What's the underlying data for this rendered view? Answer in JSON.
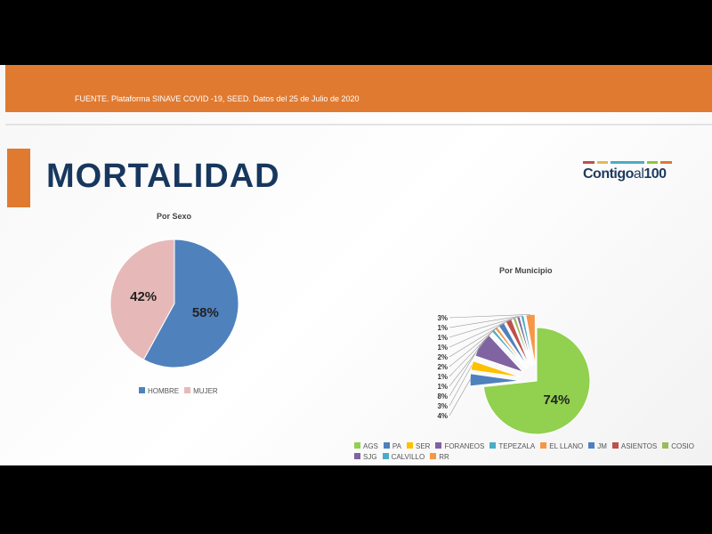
{
  "header": {
    "source": "FUENTE. Plataforma SINAVE COVID -19, SEED. Datos del 25 de Julio de 2020"
  },
  "title": "MORTALIDAD",
  "logo": {
    "text": "Contigo al 100",
    "colors": [
      "#c0504d",
      "#e3b857",
      "#4bacc6",
      "#8dc63f",
      "#e07a30"
    ]
  },
  "chart_data": [
    {
      "type": "pie",
      "title": "Por Sexo",
      "categories": [
        "HOMBRE",
        "MUJER"
      ],
      "values": [
        58,
        42
      ],
      "labels": [
        "58%",
        "42%"
      ],
      "colors": [
        "#4f81bd",
        "#e6b9b8"
      ],
      "legend": "bottom"
    },
    {
      "type": "pie",
      "title": "Por Municipio",
      "exploded": true,
      "categories": [
        "AGS",
        "PA",
        "SER",
        "FORANEOS",
        "TEPEZALA",
        "EL LLANO",
        "JM",
        "ASIENTOS",
        "COSIO",
        "SJG",
        "CALVILLO",
        "RR"
      ],
      "values": [
        74,
        4,
        3,
        8,
        1,
        1,
        2,
        2,
        1,
        1,
        1,
        3
      ],
      "labels": [
        "74%",
        "4%",
        "3%",
        "8%",
        "1%",
        "1%",
        "2%",
        "2%",
        "1%",
        "1%",
        "1%",
        "3%"
      ],
      "colors": [
        "#92d050",
        "#4f81bd",
        "#ffc000",
        "#8064a2",
        "#4bacc6",
        "#f79646",
        "#4f81bd",
        "#c0504d",
        "#9bbb59",
        "#8064a2",
        "#4bacc6",
        "#f79646"
      ],
      "legend": "bottom"
    }
  ]
}
